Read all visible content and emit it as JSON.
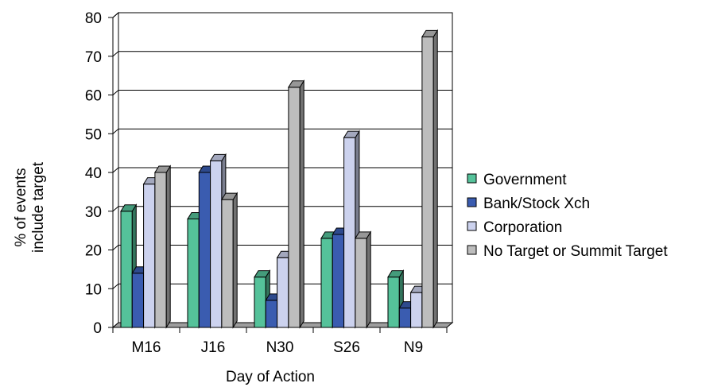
{
  "chart_data": {
    "type": "bar",
    "title": "",
    "xlabel": "Day of Action",
    "ylabel": [
      "% of events",
      "include target"
    ],
    "categories": [
      "M16",
      "J16",
      "N30",
      "S26",
      "N9"
    ],
    "ylim": [
      0,
      80
    ],
    "yticks": [
      0,
      10,
      20,
      30,
      40,
      50,
      60,
      70,
      80
    ],
    "grid": true,
    "legend_position": "right",
    "series": [
      {
        "name": "Government",
        "values": [
          30,
          28,
          13,
          23,
          13
        ],
        "color": "#55c29a"
      },
      {
        "name": "Bank/Stock Xch",
        "values": [
          14,
          40,
          7,
          24,
          5
        ],
        "color": "#3a5cb0"
      },
      {
        "name": "Corporation",
        "values": [
          37,
          43,
          18,
          49,
          9
        ],
        "color": "#ccd2ee"
      },
      {
        "name": "No Target or Summit Target",
        "values": [
          40,
          33,
          62,
          23,
          75
        ],
        "color": "#bdbdbd"
      }
    ]
  }
}
